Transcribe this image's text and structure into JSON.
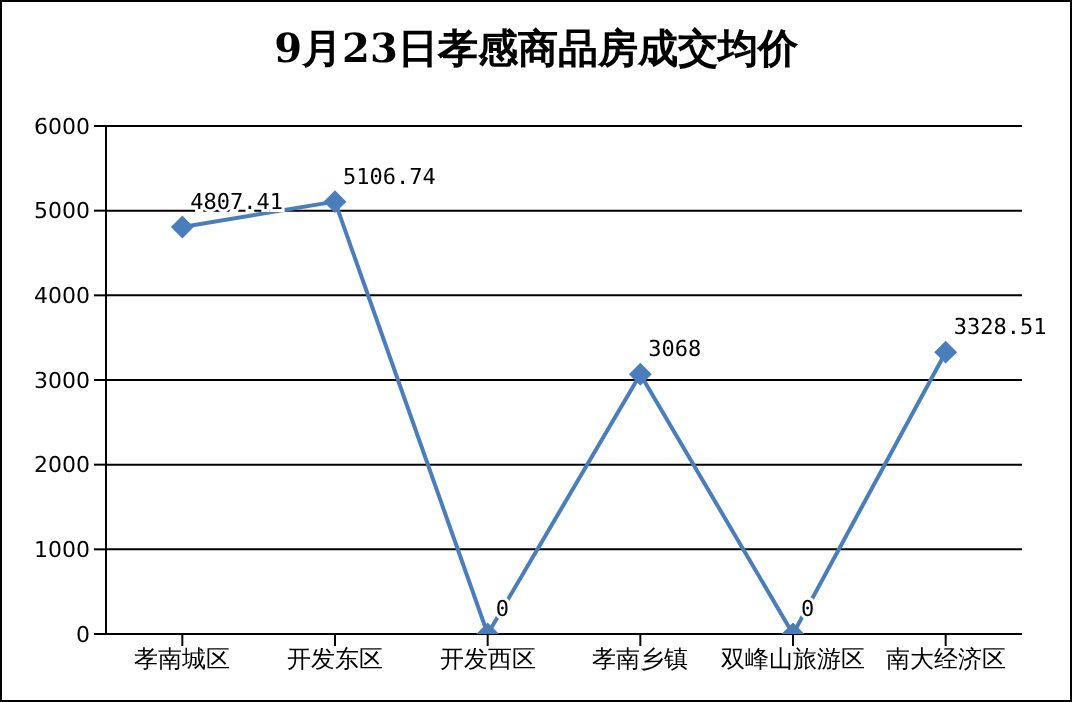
{
  "chart_data": {
    "type": "line",
    "title": "9月23日孝感商品房成交均价",
    "categories": [
      "孝南城区",
      "开发东区",
      "开发西区",
      "孝南乡镇",
      "双峰山旅游区",
      "南大经济区"
    ],
    "series": [
      {
        "color": "#4a7ebb",
        "values": [
          4807.41,
          5106.74,
          0,
          3068,
          0,
          3328.51
        ]
      }
    ],
    "ylim": [
      0,
      6000
    ],
    "yticks": [
      0,
      1000,
      2000,
      3000,
      4000,
      5000,
      6000
    ],
    "grid": "y",
    "marker": "diamond",
    "line_style": "solid",
    "data_labels": true,
    "legend": false
  }
}
